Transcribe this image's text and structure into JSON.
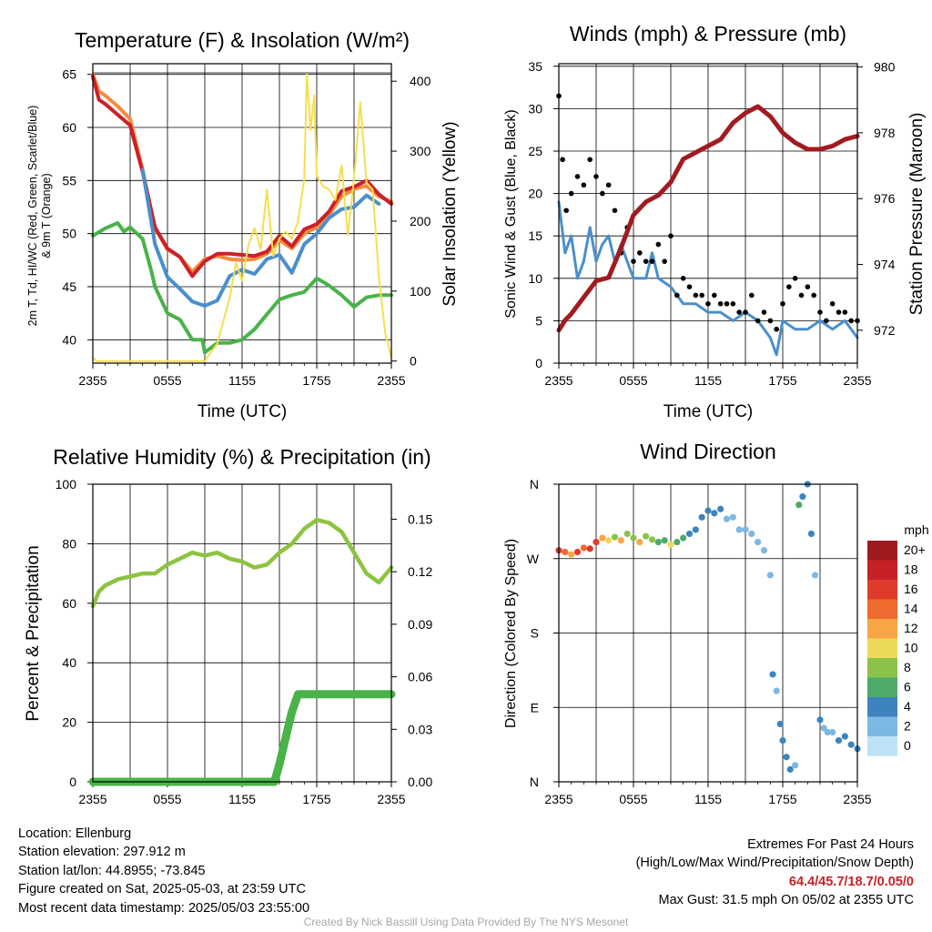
{
  "chart_data": [
    {
      "type": "line",
      "title": "Temperature (F) & Insolation (W/m²)",
      "xlabel": "Time (UTC)",
      "ylabel_left_lines": [
        "2m T, Td, HI/WC (Red, Green, Scarlet/Blue)",
        "& 9m T (Orange)"
      ],
      "ylabel_right": "Solar Insolation (Yellow)",
      "x_ticks": [
        "2355",
        "0555",
        "1155",
        "1755",
        "2355"
      ],
      "ylim_left": [
        37.8,
        66.0
      ],
      "y_ticks_left": [
        40,
        45,
        50,
        55,
        60,
        65
      ],
      "ylim_right": [
        -3,
        425
      ],
      "y_ticks_right": [
        0,
        100,
        200,
        300,
        400
      ],
      "grid": true,
      "series": [
        {
          "name": "9m T",
          "color": "#f58b3d",
          "axis": "left",
          "x": [
            0,
            0.5,
            1,
            2,
            3,
            4,
            5,
            6,
            7,
            8,
            9,
            10,
            11,
            12,
            13,
            14,
            15,
            16,
            17,
            18,
            19,
            20,
            21,
            22,
            23,
            24
          ],
          "values": [
            65.0,
            63.4,
            63.0,
            62.0,
            60.8,
            56.0,
            50.5,
            48.5,
            47.8,
            46.4,
            47.6,
            47.9,
            47.6,
            47.5,
            47.6,
            48.1,
            49.4,
            48.6,
            50.0,
            50.6,
            51.8,
            53.5,
            54.2,
            54.5,
            53.5,
            53.0
          ]
        },
        {
          "name": "2m T",
          "color": "#cc2028",
          "axis": "left",
          "x": [
            0,
            0.5,
            1,
            2,
            3,
            4,
            5,
            6,
            7,
            8,
            9,
            10,
            11,
            12,
            13,
            14,
            15,
            16,
            17,
            18,
            19,
            20,
            21,
            22,
            23,
            24
          ],
          "values": [
            64.8,
            62.6,
            62.2,
            61.2,
            60.2,
            55.8,
            50.6,
            48.6,
            47.8,
            46.0,
            47.4,
            48.1,
            48.1,
            48.0,
            47.9,
            48.3,
            49.8,
            48.8,
            50.4,
            50.9,
            52.1,
            54.0,
            54.4,
            55.0,
            53.7,
            52.8
          ]
        },
        {
          "name": "HI/WC",
          "color": "#4a8fcd",
          "axis": "left",
          "x": [
            4,
            5,
            6,
            7,
            8,
            9,
            10,
            11,
            12,
            13,
            14,
            15,
            16,
            17,
            18,
            19,
            20,
            21,
            22,
            23
          ],
          "values": [
            56.0,
            49.0,
            45.9,
            44.8,
            43.6,
            43.2,
            43.7,
            46.0,
            46.6,
            46.2,
            47.6,
            48.0,
            46.3,
            49.0,
            50.0,
            51.5,
            52.3,
            52.5,
            53.6,
            52.8
          ]
        },
        {
          "name": "2m Td",
          "color": "#49b34a",
          "axis": "left",
          "x": [
            0,
            1,
            2,
            2.5,
            3,
            4,
            4.7,
            5,
            6,
            7,
            8,
            8.8,
            9,
            10,
            11,
            12,
            13,
            14,
            15,
            16,
            17,
            18,
            19,
            20,
            21,
            22,
            23,
            24
          ],
          "values": [
            49.8,
            50.5,
            51.0,
            50.2,
            50.6,
            49.5,
            46.5,
            45.0,
            42.5,
            41.9,
            40.0,
            40.0,
            38.8,
            39.7,
            39.7,
            40.0,
            41.0,
            42.4,
            43.8,
            44.2,
            44.5,
            45.8,
            45.1,
            44.2,
            43.1,
            44.0,
            44.2,
            44.2
          ]
        },
        {
          "name": "Solar Insolation",
          "color": "#f5df4d",
          "axis": "right",
          "x": [
            0,
            0.3,
            9,
            10,
            11,
            11.5,
            12,
            12.5,
            13,
            13.5,
            14,
            14.5,
            15,
            15.5,
            16,
            16.5,
            17,
            17.2,
            17.5,
            17.8,
            18,
            18.5,
            19,
            19.5,
            20,
            20.5,
            21,
            21.5,
            22,
            22.5,
            23,
            23.5,
            24
          ],
          "values": [
            5,
            0,
            0,
            25,
            90,
            140,
            115,
            165,
            190,
            160,
            245,
            150,
            175,
            185,
            175,
            200,
            260,
            410,
            330,
            380,
            265,
            250,
            245,
            230,
            280,
            180,
            260,
            370,
            255,
            245,
            120,
            40,
            5
          ]
        }
      ]
    },
    {
      "type": "line",
      "title": "Winds (mph) & Pressure (mb)",
      "xlabel": "Time (UTC)",
      "ylabel_left": "Sonic Wind & Gust (Blue, Black)",
      "ylabel_right": "Station Pressure (Maroon)",
      "x_ticks": [
        "2355",
        "0555",
        "1155",
        "1755",
        "2355"
      ],
      "ylim_left": [
        0,
        35.3
      ],
      "y_ticks_left": [
        0,
        5,
        10,
        15,
        20,
        25,
        30,
        35
      ],
      "ylim_right": [
        971.0,
        980.1
      ],
      "y_ticks_right": [
        972,
        974,
        976,
        978,
        980
      ],
      "grid": true,
      "series": [
        {
          "name": "Sonic Wind",
          "color": "#4a8fcd",
          "axis": "left",
          "x": [
            0,
            0.5,
            1,
            1.5,
            2,
            2.5,
            3,
            3.5,
            4,
            4.5,
            5,
            6,
            7,
            7.5,
            8,
            9,
            10,
            11,
            12,
            13,
            14,
            15,
            16,
            17,
            17.5,
            18,
            19,
            20,
            21,
            22,
            23,
            24
          ],
          "values": [
            19,
            13,
            15,
            10,
            12,
            16,
            12,
            14,
            15,
            12,
            14,
            10,
            10,
            13,
            10,
            9,
            7,
            7,
            6,
            6,
            5,
            6,
            5,
            3,
            1,
            5,
            4,
            4,
            5,
            4,
            5,
            3
          ]
        },
        {
          "name": "Gust",
          "color": "#000000",
          "axis": "left",
          "x": [
            0,
            0.3,
            0.6,
            1,
            1.5,
            2,
            2.5,
            3,
            3.5,
            4,
            4.5,
            5,
            5.5,
            6,
            6.5,
            7,
            7.5,
            8,
            8.5,
            9,
            9.5,
            10,
            10.5,
            11,
            11.5,
            12,
            12.5,
            13,
            13.5,
            14,
            14.5,
            15,
            15.5,
            16,
            16.5,
            17,
            17.5,
            18,
            18.5,
            19,
            19.5,
            20,
            20.5,
            21,
            21.5,
            22,
            22.5,
            23,
            23.5,
            24
          ],
          "values": [
            31.5,
            24,
            18,
            20,
            22,
            21,
            24,
            22,
            20,
            21,
            18,
            13,
            16,
            12,
            13,
            12,
            12,
            14,
            12,
            15,
            8,
            10,
            9,
            8,
            8,
            7,
            8,
            7,
            7,
            7,
            6,
            6,
            8,
            5,
            6,
            5,
            4,
            7,
            9,
            10,
            8,
            9,
            8,
            6,
            5,
            7,
            6,
            6,
            5,
            5
          ]
        },
        {
          "name": "Station Pressure",
          "color": "#a11b20",
          "axis": "right",
          "x": [
            0,
            0.5,
            1,
            2,
            3,
            4,
            5,
            6,
            7,
            8,
            9,
            10,
            11,
            12,
            13,
            14,
            15,
            16,
            17,
            18,
            19,
            20,
            21,
            22,
            23,
            24
          ],
          "values": [
            972.0,
            972.3,
            972.5,
            973.0,
            973.5,
            973.6,
            974.5,
            975.5,
            975.9,
            976.1,
            976.5,
            977.2,
            977.4,
            977.6,
            977.8,
            978.3,
            978.6,
            978.8,
            978.5,
            978.0,
            977.7,
            977.5,
            977.5,
            977.6,
            977.8,
            977.9
          ]
        }
      ]
    },
    {
      "type": "line",
      "title": "Relative Humidity (%) & Precipitation (in)",
      "ylabel_left": "Percent & Precipitation",
      "x_ticks": [
        "2355",
        "0555",
        "1155",
        "1755",
        "2355"
      ],
      "ylim_left": [
        0,
        100
      ],
      "y_ticks_left": [
        0,
        20,
        40,
        60,
        80,
        100
      ],
      "ylim_right": [
        0,
        0.17
      ],
      "y_ticks_right": [
        "0.00",
        "0.03",
        "0.06",
        "0.09",
        "0.12",
        "0.15"
      ],
      "grid": true,
      "series": [
        {
          "name": "Relative Humidity",
          "color": "#8cc440",
          "axis": "left",
          "x": [
            0,
            0.5,
            1,
            2,
            3,
            4,
            5,
            6,
            7,
            8,
            9,
            10,
            11,
            12,
            13,
            14,
            15,
            16,
            17,
            18,
            19,
            20,
            21,
            22,
            23,
            24
          ],
          "values": [
            59,
            64,
            66,
            68,
            69,
            70,
            70,
            73,
            75,
            77,
            76,
            77,
            75,
            74,
            72,
            73,
            77,
            80,
            85,
            88,
            87,
            84,
            77,
            70,
            67,
            72
          ]
        },
        {
          "name": "Precipitation",
          "color": "#49b34a",
          "axis": "right",
          "x": [
            0,
            14.6,
            15.0,
            15.5,
            16,
            16.5,
            17,
            18,
            19,
            20,
            21,
            22,
            23,
            24
          ],
          "values": [
            0,
            0,
            0.01,
            0.025,
            0.04,
            0.05,
            0.05,
            0.05,
            0.05,
            0.05,
            0.05,
            0.05,
            0.05,
            0.05
          ]
        }
      ]
    },
    {
      "type": "scatter",
      "title": "Wind Direction",
      "ylabel_left": "Direction (Colored By Speed)",
      "x_ticks": [
        "2355",
        "0555",
        "1155",
        "1755",
        "2355"
      ],
      "y_ticks_left": [
        "N",
        "E",
        "S",
        "W",
        "N"
      ],
      "grid": true,
      "colorbar": {
        "title": "mph",
        "labels": [
          "20+",
          "18",
          "16",
          "14",
          "12",
          "10",
          "8",
          "6",
          "4",
          "2",
          "0"
        ],
        "colors": [
          "#9e1b1e",
          "#c62127",
          "#df3b2b",
          "#ef6a2e",
          "#f8a547",
          "#ecd95a",
          "#8bc34a",
          "#4daa6b",
          "#3d84bf",
          "#7db7e3",
          "#bde2f6"
        ]
      },
      "series": [
        {
          "name": "direction",
          "x": [
            0,
            0.5,
            1,
            1.5,
            2,
            2.5,
            3,
            3.5,
            4,
            4.5,
            5,
            5.5,
            6,
            6.5,
            7,
            7.5,
            8,
            8.5,
            9,
            9.5,
            10,
            10.5,
            11,
            11.5,
            12,
            12.5,
            13,
            13.5,
            14,
            14.5,
            15,
            15.5,
            16,
            16.5,
            17,
            17.2,
            17.5,
            17.8,
            18,
            18.3,
            18.6,
            19,
            19.3,
            19.6,
            20,
            20.3,
            20.6,
            21,
            21.3,
            21.6,
            22,
            22.5,
            23,
            23.5,
            24
          ],
          "values": [
            280,
            278,
            275,
            278,
            283,
            282,
            290,
            295,
            292,
            296,
            292,
            300,
            295,
            290,
            297,
            293,
            290,
            292,
            287,
            290,
            295,
            300,
            305,
            320,
            328,
            325,
            330,
            318,
            320,
            305,
            305,
            300,
            290,
            280,
            250,
            130,
            110,
            70,
            50,
            30,
            15,
            20,
            335,
            345,
            360,
            300,
            250,
            75,
            65,
            60,
            60,
            50,
            55,
            45,
            40
          ],
          "speed": [
            16,
            14,
            12,
            16,
            15,
            16,
            16,
            12,
            10,
            8,
            12,
            8,
            9,
            12,
            9,
            8,
            6,
            6,
            10,
            6,
            6,
            5,
            5,
            4,
            4,
            4,
            4,
            3,
            2,
            2,
            3,
            2,
            2,
            2,
            2,
            4,
            3,
            4,
            4,
            4,
            4,
            2,
            6,
            4,
            5,
            4,
            3,
            4,
            3,
            2,
            2,
            4,
            4,
            4,
            4
          ]
        }
      ]
    }
  ],
  "info_left": {
    "location": "Location: Ellenburg",
    "elevation": "Station elevation: 297.912 m",
    "latlon": "Station lat/lon: 44.8955; -73.845",
    "created": "Figure created on Sat, 2025-05-03, at 23:59 UTC",
    "latest": "Most recent data timestamp: 2025/05/03 23:55:00"
  },
  "info_right": {
    "heading": "Extremes For Past 24 Hours",
    "legend": "(High/Low/Max Wind/Precipitation/Snow Depth)",
    "values": "64.4/45.7/18.7/0.05/0",
    "max_gust": "Max Gust: 31.5 mph On 05/02 at 2355 UTC"
  },
  "credit": "Created By Nick Bassill Using Data Provided By The NYS Mesonet"
}
